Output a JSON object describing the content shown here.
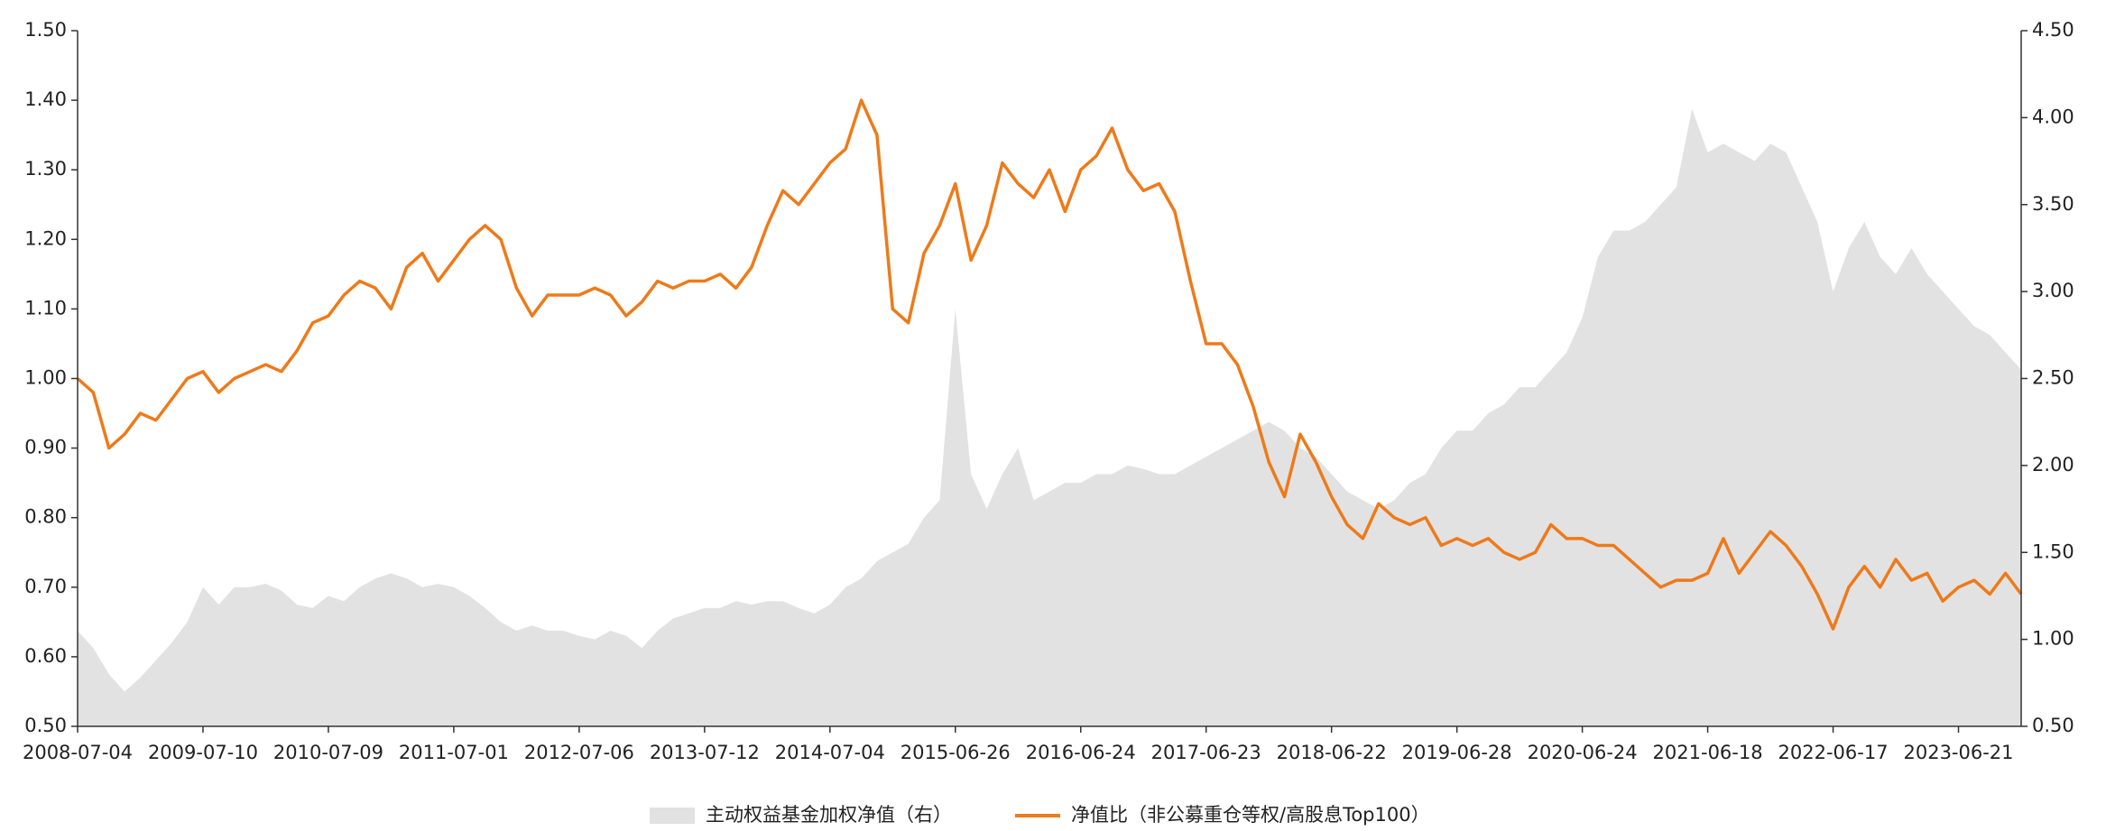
{
  "chart_data": {
    "type": "line",
    "categories": [
      "2008-07-04",
      null,
      null,
      null,
      null,
      null,
      null,
      null,
      "2009-07-10",
      null,
      null,
      null,
      null,
      null,
      null,
      null,
      "2010-07-09",
      null,
      null,
      null,
      null,
      null,
      null,
      null,
      "2011-07-01",
      null,
      null,
      null,
      null,
      null,
      null,
      null,
      "2012-07-06",
      null,
      null,
      null,
      null,
      null,
      null,
      null,
      "2013-07-12",
      null,
      null,
      null,
      null,
      null,
      null,
      null,
      "2014-07-04",
      null,
      null,
      null,
      null,
      null,
      null,
      null,
      "2015-06-26",
      null,
      null,
      null,
      null,
      null,
      null,
      null,
      "2016-06-24",
      null,
      null,
      null,
      null,
      null,
      null,
      null,
      "2017-06-23",
      null,
      null,
      null,
      null,
      null,
      null,
      null,
      "2018-06-22",
      null,
      null,
      null,
      null,
      null,
      null,
      null,
      "2019-06-28",
      null,
      null,
      null,
      null,
      null,
      null,
      null,
      "2020-06-24",
      null,
      null,
      null,
      null,
      null,
      null,
      null,
      "2021-06-18",
      null,
      null,
      null,
      null,
      null,
      null,
      null,
      "2022-06-17",
      null,
      null,
      null,
      null,
      null,
      null,
      null,
      "2023-06-21",
      null,
      null,
      null,
      null
    ],
    "series": [
      {
        "name": "主动权益基金加权净值（右）",
        "type": "area",
        "axis": "y2",
        "color": "#e2e2e2",
        "values": [
          1.05,
          0.95,
          0.8,
          0.7,
          0.78,
          0.88,
          0.98,
          1.1,
          1.3,
          1.2,
          1.3,
          1.3,
          1.32,
          1.28,
          1.2,
          1.18,
          1.25,
          1.22,
          1.3,
          1.35,
          1.38,
          1.35,
          1.3,
          1.32,
          1.3,
          1.25,
          1.18,
          1.1,
          1.05,
          1.08,
          1.05,
          1.05,
          1.02,
          1.0,
          1.05,
          1.02,
          0.95,
          1.05,
          1.12,
          1.15,
          1.18,
          1.18,
          1.22,
          1.2,
          1.22,
          1.22,
          1.18,
          1.15,
          1.2,
          1.3,
          1.35,
          1.45,
          1.5,
          1.55,
          1.7,
          1.8,
          2.9,
          1.95,
          1.75,
          1.95,
          2.1,
          1.8,
          1.85,
          1.9,
          1.9,
          1.95,
          1.95,
          2.0,
          1.98,
          1.95,
          1.95,
          2.0,
          2.05,
          2.1,
          2.15,
          2.2,
          2.25,
          2.2,
          2.1,
          2.05,
          1.95,
          1.85,
          1.8,
          1.75,
          1.8,
          1.9,
          1.95,
          2.1,
          2.2,
          2.2,
          2.3,
          2.35,
          2.45,
          2.45,
          2.55,
          2.65,
          2.85,
          3.2,
          3.35,
          3.35,
          3.4,
          3.5,
          3.6,
          4.05,
          3.8,
          3.85,
          3.8,
          3.75,
          3.85,
          3.8,
          3.6,
          3.4,
          3.0,
          3.25,
          3.4,
          3.2,
          3.1,
          3.25,
          3.1,
          3.0,
          2.9,
          2.8,
          2.75,
          2.65,
          2.55
        ]
      },
      {
        "name": "净值比（非公募重仓等权/高股息Top100）",
        "type": "line",
        "axis": "y",
        "color": "#ee7a1a",
        "values": [
          1.0,
          0.98,
          0.9,
          0.92,
          0.95,
          0.94,
          0.97,
          1.0,
          1.01,
          0.98,
          1.0,
          1.01,
          1.02,
          1.01,
          1.04,
          1.08,
          1.09,
          1.12,
          1.14,
          1.13,
          1.1,
          1.16,
          1.18,
          1.14,
          1.17,
          1.2,
          1.22,
          1.2,
          1.13,
          1.09,
          1.12,
          1.12,
          1.12,
          1.13,
          1.12,
          1.09,
          1.11,
          1.14,
          1.13,
          1.14,
          1.14,
          1.15,
          1.13,
          1.16,
          1.22,
          1.27,
          1.25,
          1.28,
          1.31,
          1.33,
          1.4,
          1.35,
          1.1,
          1.08,
          1.18,
          1.22,
          1.28,
          1.17,
          1.22,
          1.31,
          1.28,
          1.26,
          1.3,
          1.24,
          1.3,
          1.32,
          1.36,
          1.3,
          1.27,
          1.28,
          1.24,
          1.14,
          1.05,
          1.05,
          1.02,
          0.96,
          0.88,
          0.83,
          0.92,
          0.88,
          0.83,
          0.79,
          0.77,
          0.82,
          0.8,
          0.79,
          0.8,
          0.76,
          0.77,
          0.76,
          0.77,
          0.75,
          0.74,
          0.75,
          0.79,
          0.77,
          0.77,
          0.76,
          0.76,
          0.74,
          0.72,
          0.7,
          0.71,
          0.71,
          0.72,
          0.77,
          0.72,
          0.75,
          0.78,
          0.76,
          0.73,
          0.69,
          0.64,
          0.7,
          0.73,
          0.7,
          0.74,
          0.71,
          0.72,
          0.68,
          0.7,
          0.71,
          0.69,
          0.72,
          0.69
        ]
      }
    ],
    "ylim": [
      0.5,
      1.5
    ],
    "yticks": [
      {
        "value": 0.5,
        "label": "0.50"
      },
      {
        "value": 0.6,
        "label": "0.60"
      },
      {
        "value": 0.7,
        "label": "0.70"
      },
      {
        "value": 0.8,
        "label": "0.80"
      },
      {
        "value": 0.9,
        "label": "0.90"
      },
      {
        "value": 1.0,
        "label": "1.00"
      },
      {
        "value": 1.1,
        "label": "1.10"
      },
      {
        "value": 1.2,
        "label": "1.20"
      },
      {
        "value": 1.3,
        "label": "1.30"
      },
      {
        "value": 1.4,
        "label": "1.40"
      },
      {
        "value": 1.5,
        "label": "1.50"
      }
    ],
    "y2lim": [
      0.5,
      4.5
    ],
    "y2ticks": [
      {
        "value": 0.5,
        "label": "0.50"
      },
      {
        "value": 1.0,
        "label": "1.00"
      },
      {
        "value": 1.5,
        "label": "1.50"
      },
      {
        "value": 2.0,
        "label": "2.00"
      },
      {
        "value": 2.5,
        "label": "2.50"
      },
      {
        "value": 3.0,
        "label": "3.00"
      },
      {
        "value": 3.5,
        "label": "3.50"
      },
      {
        "value": 4.0,
        "label": "4.00"
      },
      {
        "value": 4.5,
        "label": "4.50"
      }
    ],
    "grid": false,
    "legend": "bottom"
  }
}
